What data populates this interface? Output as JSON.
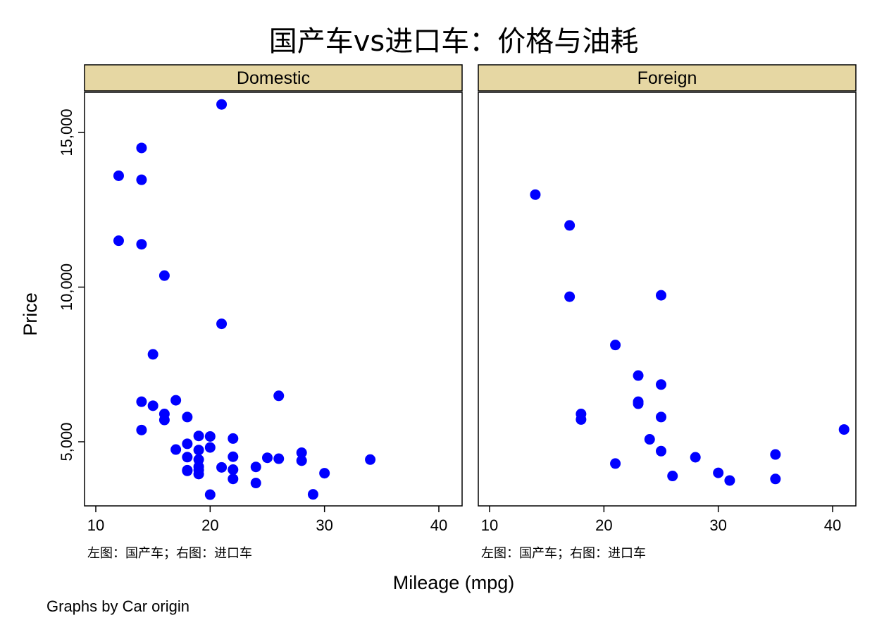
{
  "chart_data": {
    "type": "scatter",
    "title": "国产车vs进口车：价格与油耗",
    "xlabel": "Mileage (mpg)",
    "ylabel": "Price",
    "xlim": [
      10,
      42
    ],
    "ylim": [
      3291,
      16000
    ],
    "x_ticks": [
      10,
      20,
      30,
      40
    ],
    "x_tick_labels": [
      "10",
      "20",
      "30",
      "40"
    ],
    "y_ticks": [
      5000,
      10000,
      15000
    ],
    "y_tick_labels": [
      "5,000",
      "10,000",
      "15,000"
    ],
    "grid": false,
    "marker_color": "#0000ff",
    "strip_color": "#e6d7a3",
    "footer": "Graphs by Car origin",
    "panels": [
      {
        "name": "Domestic",
        "note": "左图：国产车；右图：进口车",
        "points": [
          [
            12,
            13600
          ],
          [
            12,
            11500
          ],
          [
            14,
            14500
          ],
          [
            14,
            13470
          ],
          [
            14,
            11385
          ],
          [
            14,
            6295
          ],
          [
            14,
            5379
          ],
          [
            15,
            7827
          ],
          [
            15,
            6165
          ],
          [
            16,
            10372
          ],
          [
            16,
            5899
          ],
          [
            16,
            5705
          ],
          [
            17,
            6342
          ],
          [
            17,
            4749
          ],
          [
            18,
            5799
          ],
          [
            18,
            4934
          ],
          [
            18,
            4504
          ],
          [
            18,
            4080
          ],
          [
            18,
            4060
          ],
          [
            19,
            5189
          ],
          [
            19,
            4733
          ],
          [
            19,
            4425
          ],
          [
            19,
            4195
          ],
          [
            19,
            4082
          ],
          [
            19,
            3955
          ],
          [
            20,
            5172
          ],
          [
            20,
            4816
          ],
          [
            20,
            3291
          ],
          [
            21,
            15906
          ],
          [
            21,
            8814
          ],
          [
            21,
            4172
          ],
          [
            22,
            5104
          ],
          [
            22,
            4516
          ],
          [
            22,
            4099
          ],
          [
            22,
            3799
          ],
          [
            24,
            4187
          ],
          [
            24,
            3667
          ],
          [
            25,
            4482
          ],
          [
            26,
            6486
          ],
          [
            26,
            4453
          ],
          [
            28,
            4647
          ],
          [
            28,
            4389
          ],
          [
            29,
            3299
          ],
          [
            30,
            3984
          ],
          [
            34,
            4424
          ]
        ]
      },
      {
        "name": "Foreign",
        "note": "左图：国产车；右图：进口车",
        "points": [
          [
            14,
            12990
          ],
          [
            17,
            11995
          ],
          [
            17,
            9690
          ],
          [
            18,
            5899
          ],
          [
            18,
            5719
          ],
          [
            21,
            8129
          ],
          [
            21,
            4296
          ],
          [
            23,
            7140
          ],
          [
            23,
            6295
          ],
          [
            23,
            6229
          ],
          [
            24,
            5079
          ],
          [
            25,
            9735
          ],
          [
            25,
            6850
          ],
          [
            25,
            5799
          ],
          [
            25,
            4697
          ],
          [
            26,
            3895
          ],
          [
            28,
            4499
          ],
          [
            30,
            3995
          ],
          [
            31,
            3748
          ],
          [
            35,
            4589
          ],
          [
            35,
            3798
          ],
          [
            41,
            5397
          ]
        ]
      }
    ]
  }
}
